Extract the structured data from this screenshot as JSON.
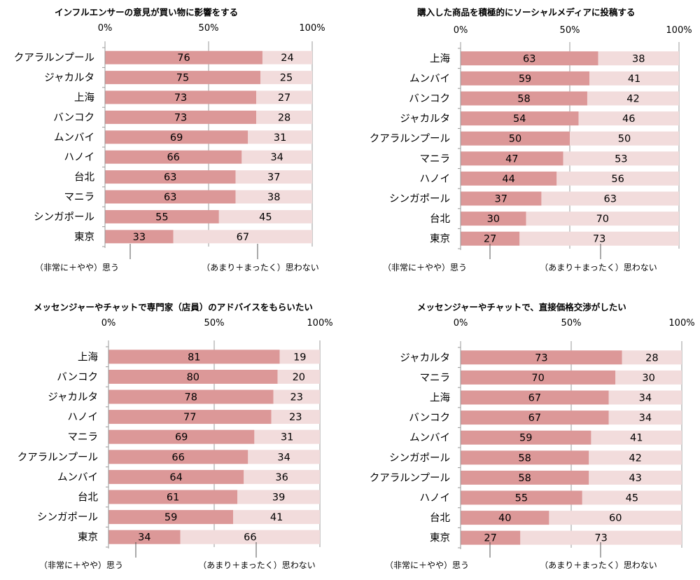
{
  "colors": {
    "agree": "#dc9898",
    "disagree": "#f2dcdc",
    "grid": "#999999"
  },
  "legend": {
    "agree_label": "（非常に＋やや）思う",
    "disagree_label": "（あまり＋まったく）思わない"
  },
  "chart_data": [
    {
      "type": "bar",
      "title": "インフルエンサーの意見が買い物に影響をする",
      "xticks": [
        "0%",
        "50%",
        "100%"
      ],
      "xlim": [
        0,
        100
      ],
      "categories": [
        "クアラルンプール",
        "ジャカルタ",
        "上海",
        "バンコク",
        "ムンバイ",
        "ハノイ",
        "台北",
        "マニラ",
        "シンガポール",
        "東京"
      ],
      "series": [
        {
          "name": "（非常に＋やや）思う",
          "values": [
            76,
            75,
            73,
            73,
            69,
            66,
            63,
            63,
            55,
            33
          ]
        },
        {
          "name": "（あまり＋まったく）思わない",
          "values": [
            24,
            25,
            27,
            28,
            31,
            34,
            37,
            38,
            45,
            67
          ]
        }
      ]
    },
    {
      "type": "bar",
      "title": "購入した商品を積極的にソーシャルメディアに投稿する",
      "xticks": [
        "0%",
        "50%",
        "100%"
      ],
      "xlim": [
        0,
        100
      ],
      "categories": [
        "上海",
        "ムンバイ",
        "バンコク",
        "ジャカルタ",
        "クアラルンプール",
        "マニラ",
        "ハノイ",
        "シンガポール",
        "台北",
        "東京"
      ],
      "series": [
        {
          "name": "（非常に＋やや）思う",
          "values": [
            63,
            59,
            58,
            54,
            50,
            47,
            44,
            37,
            30,
            27
          ]
        },
        {
          "name": "（あまり＋まったく）思わない",
          "values": [
            38,
            41,
            42,
            46,
            50,
            53,
            56,
            63,
            70,
            73
          ]
        }
      ]
    },
    {
      "type": "bar",
      "title": "メッセンジャーやチャットで専門家（店員）のアドバイスをもらいたい",
      "xticks": [
        "0%",
        "50%",
        "100%"
      ],
      "xlim": [
        0,
        100
      ],
      "categories": [
        "上海",
        "バンコク",
        "ジャカルタ",
        "ハノイ",
        "マニラ",
        "クアラルンプール",
        "ムンバイ",
        "台北",
        "シンガポール",
        "東京"
      ],
      "series": [
        {
          "name": "（非常に＋やや）思う",
          "values": [
            81,
            80,
            78,
            77,
            69,
            66,
            64,
            61,
            59,
            34
          ]
        },
        {
          "name": "（あまり＋まったく）思わない",
          "values": [
            19,
            20,
            23,
            23,
            31,
            34,
            36,
            39,
            41,
            66
          ]
        }
      ]
    },
    {
      "type": "bar",
      "title": "メッセンジャーやチャットで、直接価格交渉がしたい",
      "xticks": [
        "0%",
        "50%",
        "100%"
      ],
      "xlim": [
        0,
        100
      ],
      "categories": [
        "ジャカルタ",
        "マニラ",
        "上海",
        "バンコク",
        "ムンバイ",
        "シンガポール",
        "クアラルンプール",
        "ハノイ",
        "台北",
        "東京"
      ],
      "series": [
        {
          "name": "（非常に＋やや）思う",
          "values": [
            73,
            70,
            67,
            67,
            59,
            58,
            58,
            55,
            40,
            27
          ]
        },
        {
          "name": "（あまり＋まったく）思わない",
          "values": [
            28,
            30,
            34,
            34,
            41,
            42,
            43,
            45,
            60,
            73
          ]
        }
      ]
    }
  ]
}
